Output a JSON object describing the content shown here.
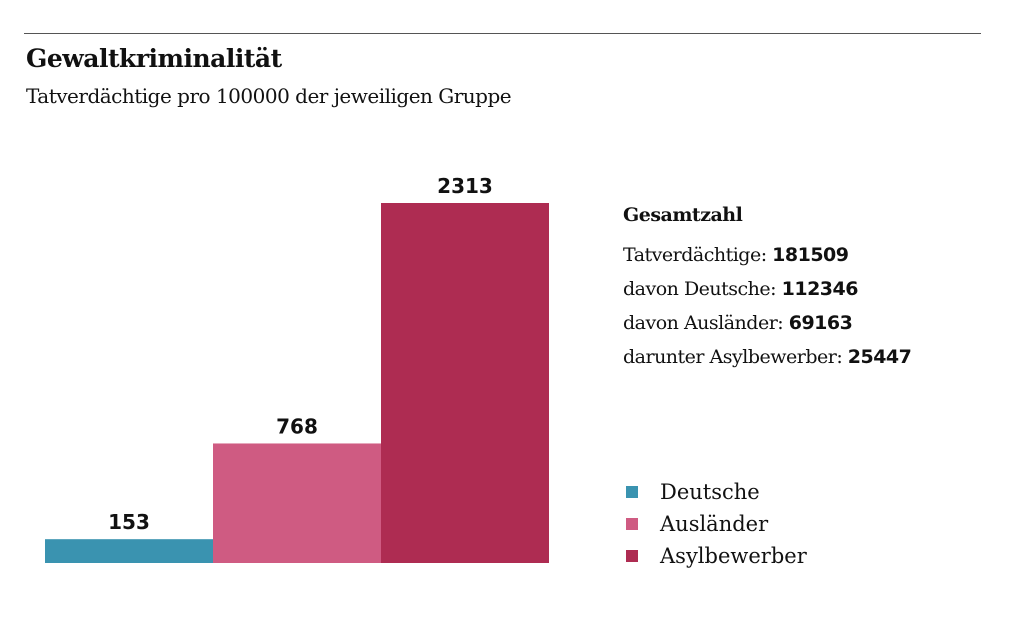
{
  "colors": {
    "Deutsche": "#3a93b0",
    "Ausländer": "#cf5b82",
    "Asylbewerber": "#ae2c52"
  },
  "chart_data": {
    "type": "bar",
    "title": "Gewaltkriminalität",
    "subtitle": "Tatverdächtige pro 100000 der jeweiligen Gruppe",
    "categories": [
      "Deutsche",
      "Ausländer",
      "Asylbewerber"
    ],
    "values": [
      153,
      768,
      2313
    ],
    "legend": {
      "placement": "right",
      "entries": [
        "Deutsche",
        "Ausländer",
        "Asylbewerber"
      ]
    },
    "grid": false
  },
  "info": {
    "heading": "Gesamtzahl",
    "rows": [
      {
        "label": "Tatverdächtige:",
        "value": "181509"
      },
      {
        "label": "davon Deutsche:",
        "value": "112346"
      },
      {
        "label": "davon Ausländer:",
        "value": "69163"
      },
      {
        "label": "darunter Asylbewerber:",
        "value": "25447"
      }
    ]
  }
}
